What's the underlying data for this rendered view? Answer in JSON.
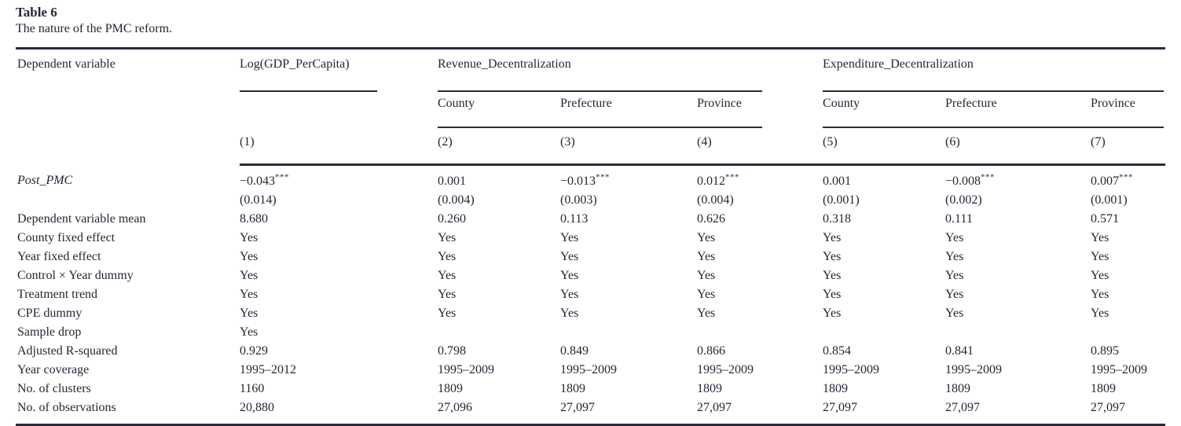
{
  "caption": {
    "label": "Table 6",
    "description": "The nature of the PMC reform."
  },
  "table": {
    "corner_header": "Dependent variable",
    "groups": [
      {
        "title": "Log(GDP_PerCapita)",
        "subcols": []
      },
      {
        "title": "Revenue_Decentralization",
        "subcols": [
          "County",
          "Prefecture",
          "Province"
        ]
      },
      {
        "title": "Expenditure_Decentralization",
        "subcols": [
          "County",
          "Prefecture",
          "Province"
        ]
      }
    ],
    "col_numbers": [
      "(1)",
      "(2)",
      "(3)",
      "(4)",
      "(5)",
      "(6)",
      "(7)"
    ],
    "rows": [
      {
        "label": "Post_PMC",
        "italic": true,
        "cells": [
          "−0.043***",
          "0.001",
          "−0.013***",
          "0.012***",
          "0.001",
          "−0.008***",
          "0.007***"
        ]
      },
      {
        "label": "",
        "italic": false,
        "cells": [
          "(0.014)",
          "(0.004)",
          "(0.003)",
          "(0.004)",
          "(0.001)",
          "(0.002)",
          "(0.001)"
        ]
      },
      {
        "label": "Dependent variable mean",
        "italic": false,
        "cells": [
          "8.680",
          "0.260",
          "0.113",
          "0.626",
          "0.318",
          "0.111",
          "0.571"
        ]
      },
      {
        "label": "County fixed effect",
        "italic": false,
        "cells": [
          "Yes",
          "Yes",
          "Yes",
          "Yes",
          "Yes",
          "Yes",
          "Yes"
        ]
      },
      {
        "label": "Year fixed effect",
        "italic": false,
        "cells": [
          "Yes",
          "Yes",
          "Yes",
          "Yes",
          "Yes",
          "Yes",
          "Yes"
        ]
      },
      {
        "label": "Control × Year dummy",
        "italic": false,
        "cells": [
          "Yes",
          "Yes",
          "Yes",
          "Yes",
          "Yes",
          "Yes",
          "Yes"
        ]
      },
      {
        "label": "Treatment trend",
        "italic": false,
        "cells": [
          "Yes",
          "Yes",
          "Yes",
          "Yes",
          "Yes",
          "Yes",
          "Yes"
        ]
      },
      {
        "label": "CPE dummy",
        "italic": false,
        "cells": [
          "Yes",
          "Yes",
          "Yes",
          "Yes",
          "Yes",
          "Yes",
          "Yes"
        ]
      },
      {
        "label": "Sample drop",
        "italic": false,
        "cells": [
          "Yes",
          "",
          "",
          "",
          "",
          "",
          ""
        ]
      },
      {
        "label": "Adjusted R-squared",
        "italic": false,
        "cells": [
          "0.929",
          "0.798",
          "0.849",
          "0.866",
          "0.854",
          "0.841",
          "0.895"
        ]
      },
      {
        "label": "Year coverage",
        "italic": false,
        "cells": [
          "1995–2012",
          "1995–2009",
          "1995–2009",
          "1995–2009",
          "1995–2009",
          "1995–2009",
          "1995–2009"
        ]
      },
      {
        "label": "No. of clusters",
        "italic": false,
        "cells": [
          "1160",
          "1809",
          "1809",
          "1809",
          "1809",
          "1809",
          "1809"
        ]
      },
      {
        "label": "No. of observations",
        "italic": false,
        "cells": [
          "20,880",
          "27,096",
          "27,097",
          "27,097",
          "27,097",
          "27,097",
          "27,097"
        ]
      }
    ]
  },
  "colors": {
    "text": "#262636",
    "rule": "#2b2b3b",
    "background": "#ffffff"
  }
}
